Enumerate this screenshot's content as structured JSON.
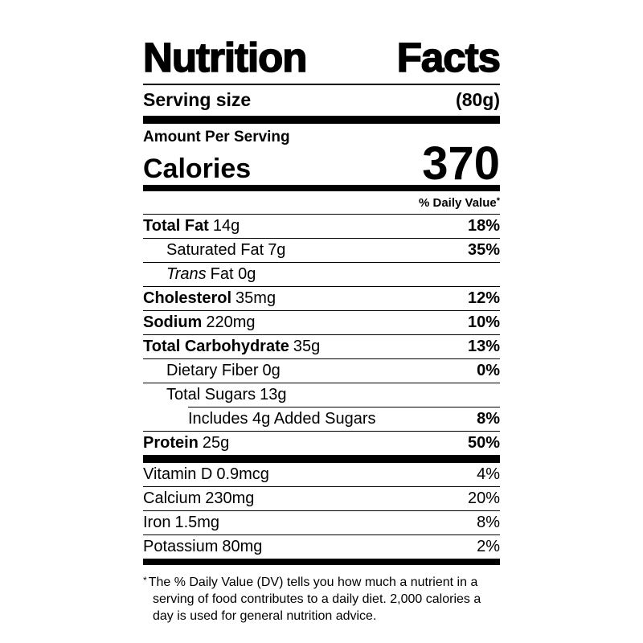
{
  "label": {
    "title_words": {
      "first": "Nutrition",
      "second": "Facts"
    },
    "title": "Nutrition Facts",
    "serving": {
      "label": "Serving size",
      "value": "(80g)"
    },
    "amount_per_serving": "Amount Per Serving",
    "calories": {
      "label": "Calories",
      "value": "370"
    },
    "dv_header": {
      "text": "% Daily Value",
      "asterisk": "*"
    },
    "rows": [
      {
        "name": "Total Fat",
        "amount": "14g",
        "dv": "18%"
      },
      {
        "name": "Saturated Fat",
        "amount": "7g",
        "dv": "35%"
      },
      {
        "name": "Trans",
        "amount": "Fat 0g",
        "dv": ""
      },
      {
        "name": "Cholesterol",
        "amount": "35mg",
        "dv": "12%"
      },
      {
        "name": "Sodium",
        "amount": "220mg",
        "dv": "10%"
      },
      {
        "name": "Total Carbohydrate",
        "amount": "35g",
        "dv": "13%"
      },
      {
        "name": "Dietary Fiber",
        "amount": "0g",
        "dv": "0%"
      },
      {
        "name": "Total Sugars",
        "amount": "13g",
        "dv": ""
      },
      {
        "name": "Includes 4g Added Sugars",
        "amount": "",
        "dv": "8%"
      },
      {
        "name": "Protein",
        "amount": "25g",
        "dv": "50%"
      }
    ],
    "vitamins": [
      {
        "name": "Vitamin D",
        "amount": "0.9mcg",
        "dv": "4%"
      },
      {
        "name": "Calcium",
        "amount": "230mg",
        "dv": "20%"
      },
      {
        "name": "Iron",
        "amount": "1.5mg",
        "dv": "8%"
      },
      {
        "name": "Potassium",
        "amount": "80mg",
        "dv": "2%"
      }
    ],
    "footnote": {
      "asterisk": "*",
      "text": "The % Daily Value (DV) tells you how much a nutrient in a serving of food contributes to a daily diet. 2,000 calories a day is used for general nutrition advice."
    }
  }
}
